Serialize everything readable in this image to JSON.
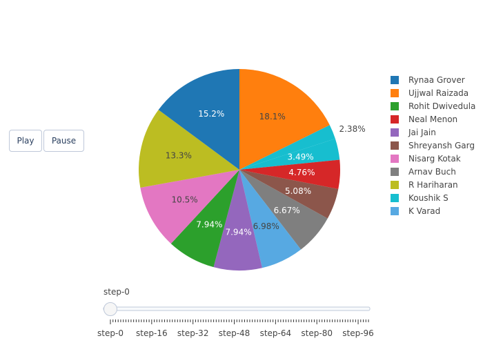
{
  "controls": {
    "play_label": "Play",
    "pause_label": "Pause"
  },
  "slider": {
    "current_label": "step-0",
    "tick_labels": [
      "step-0",
      "step-16",
      "step-32",
      "step-48",
      "step-64",
      "step-80",
      "step-96"
    ],
    "value": 0,
    "max": 100
  },
  "chart_data": {
    "type": "pie",
    "slices": [
      {
        "label": "Ujjwal Raizada",
        "percent": 18.1,
        "color": "#ff7f0e",
        "text": "18.1%"
      },
      {
        "label": "Koushik S",
        "percent": 2.38,
        "color": "#17becf",
        "text": "2.38%"
      },
      {
        "label": "Koushik S",
        "percent": 3.49,
        "color": "#17becf",
        "text": "3.49%"
      },
      {
        "label": "Neal Menon",
        "percent": 4.76,
        "color": "#d62728",
        "text": "4.76%"
      },
      {
        "label": "Shreyansh Garg",
        "percent": 5.08,
        "color": "#8c564b",
        "text": "5.08%"
      },
      {
        "label": "Arnav Buch",
        "percent": 6.67,
        "color": "#7f7f7f",
        "text": "6.67%"
      },
      {
        "label": "K Varad",
        "percent": 6.98,
        "color": "#57a9e2",
        "text": "6.98%"
      },
      {
        "label": "Jai Jain",
        "percent": 7.94,
        "color": "#9467bd",
        "text": "7.94%"
      },
      {
        "label": "Rohit Dwivedula",
        "percent": 7.94,
        "color": "#2ca02c",
        "text": "7.94%"
      },
      {
        "label": "Nisarg Kotak",
        "percent": 10.5,
        "color": "#e377c2",
        "text": "10.5%"
      },
      {
        "label": "R Hariharan",
        "percent": 13.3,
        "color": "#bcbd22",
        "text": "13.3%"
      },
      {
        "label": "Rynaa Grover",
        "percent": 15.2,
        "color": "#1f77b4",
        "text": "15.2%"
      }
    ],
    "legend": [
      {
        "label": "Rynaa Grover",
        "color": "#1f77b4"
      },
      {
        "label": "Ujjwal Raizada",
        "color": "#ff7f0e"
      },
      {
        "label": "Rohit Dwivedula",
        "color": "#2ca02c"
      },
      {
        "label": "Neal Menon",
        "color": "#d62728"
      },
      {
        "label": "Jai Jain",
        "color": "#9467bd"
      },
      {
        "label": "Shreyansh Garg",
        "color": "#8c564b"
      },
      {
        "label": "Nisarg Kotak",
        "color": "#e377c2"
      },
      {
        "label": "Arnav Buch",
        "color": "#7f7f7f"
      },
      {
        "label": "R Hariharan",
        "color": "#bcbd22"
      },
      {
        "label": "Koushik S",
        "color": "#17becf"
      },
      {
        "label": "K Varad",
        "color": "#57a9e2"
      }
    ],
    "legend_position": "right"
  }
}
